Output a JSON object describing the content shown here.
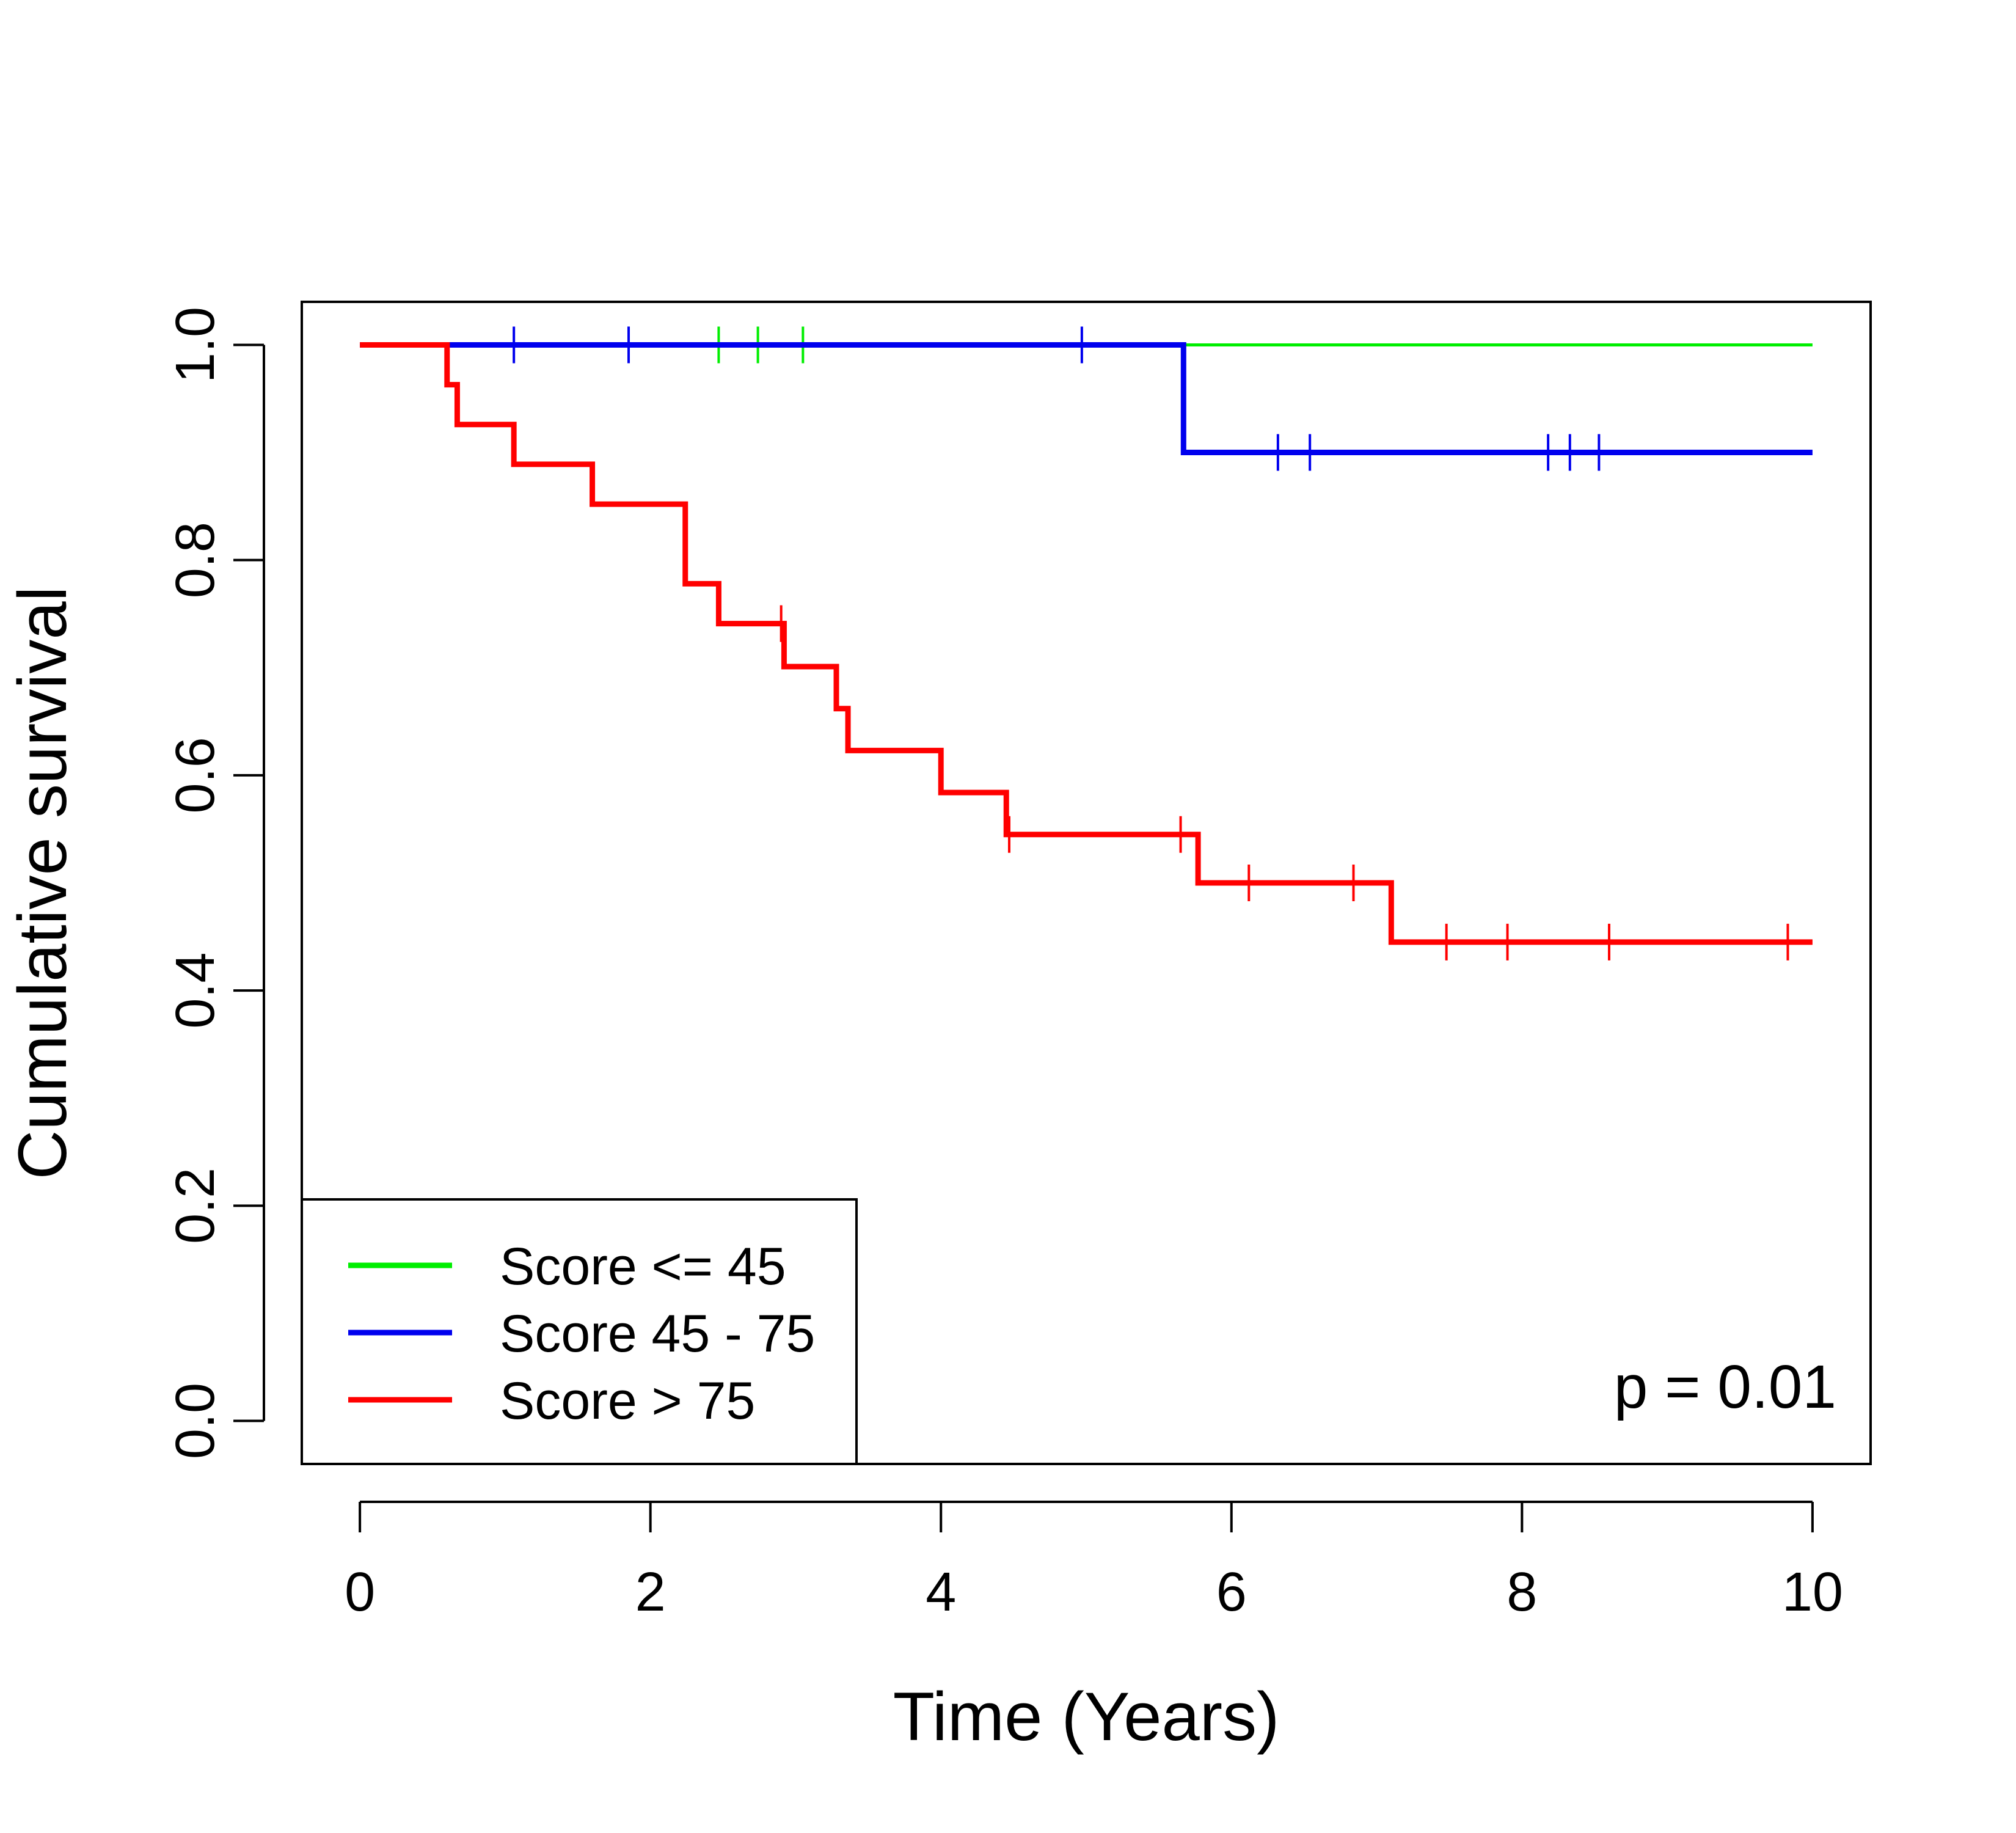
{
  "chart_data": {
    "type": "line",
    "subtype": "kaplan-meier step",
    "xlabel": "Time (Years)",
    "ylabel": "Cumulative survival",
    "xlim": [
      -0.4,
      10.4
    ],
    "ylim": [
      -0.04,
      1.04
    ],
    "x_ticks": [
      0,
      2,
      4,
      6,
      8,
      10
    ],
    "x_tick_labels": [
      "0",
      "2",
      "4",
      "6",
      "8",
      "10"
    ],
    "y_ticks": [
      0.0,
      0.2,
      0.4,
      0.6,
      0.8,
      1.0
    ],
    "y_tick_labels": [
      "0.0",
      "0.2",
      "0.4",
      "0.6",
      "0.8",
      "1.0"
    ],
    "grid": false,
    "legend_position": "bottom-left",
    "annotation": "p = 0.01",
    "series": [
      {
        "name": "Score <= 45",
        "color": "#00ee00",
        "steps": [
          [
            0,
            1.0
          ],
          [
            10,
            1.0
          ]
        ],
        "censored": [
          [
            2.47,
            1.0
          ],
          [
            2.74,
            1.0
          ],
          [
            3.05,
            1.0
          ]
        ]
      },
      {
        "name": "Score 45 - 75",
        "color": "#0000ee",
        "steps": [
          [
            0,
            1.0
          ],
          [
            5.67,
            0.9
          ],
          [
            10,
            0.9
          ]
        ],
        "censored": [
          [
            1.06,
            1.0
          ],
          [
            1.85,
            1.0
          ],
          [
            4.97,
            1.0
          ],
          [
            6.32,
            0.9
          ],
          [
            6.54,
            0.9
          ],
          [
            8.18,
            0.9
          ],
          [
            8.33,
            0.9
          ],
          [
            8.53,
            0.9
          ]
        ]
      },
      {
        "name": "Score > 75",
        "color": "#ff0000",
        "steps": [
          [
            0,
            1.0
          ],
          [
            0.6,
            0.963
          ],
          [
            0.67,
            0.926
          ],
          [
            1.06,
            0.889
          ],
          [
            1.6,
            0.852
          ],
          [
            2.24,
            0.778
          ],
          [
            2.47,
            0.741
          ],
          [
            2.92,
            0.701
          ],
          [
            3.28,
            0.662
          ],
          [
            3.36,
            0.623
          ],
          [
            4.0,
            0.584
          ],
          [
            4.45,
            0.545
          ],
          [
            5.77,
            0.5
          ],
          [
            7.1,
            0.445
          ],
          [
            10,
            0.445
          ]
        ],
        "censored": [
          [
            2.9,
            0.741
          ],
          [
            4.47,
            0.545
          ],
          [
            5.65,
            0.545
          ],
          [
            6.12,
            0.5
          ],
          [
            6.84,
            0.5
          ],
          [
            7.48,
            0.445
          ],
          [
            7.9,
            0.445
          ],
          [
            8.6,
            0.445
          ],
          [
            9.83,
            0.445
          ]
        ]
      }
    ]
  }
}
